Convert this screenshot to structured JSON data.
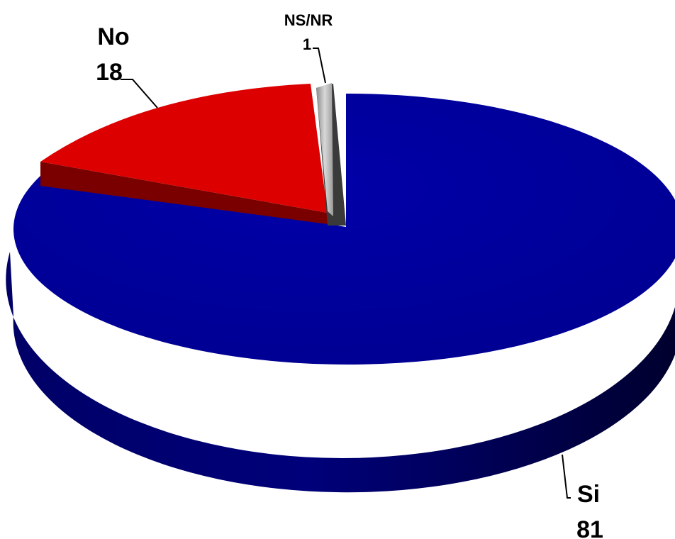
{
  "chart_data": {
    "type": "pie",
    "style": "3d-exploded",
    "slices": [
      {
        "label": "Si",
        "value": 81,
        "color": "#000099"
      },
      {
        "label": "No",
        "value": 18,
        "color": "#dd0000"
      },
      {
        "label": "NS/NR",
        "value": 1,
        "color": "#b0b0b0"
      }
    ]
  }
}
